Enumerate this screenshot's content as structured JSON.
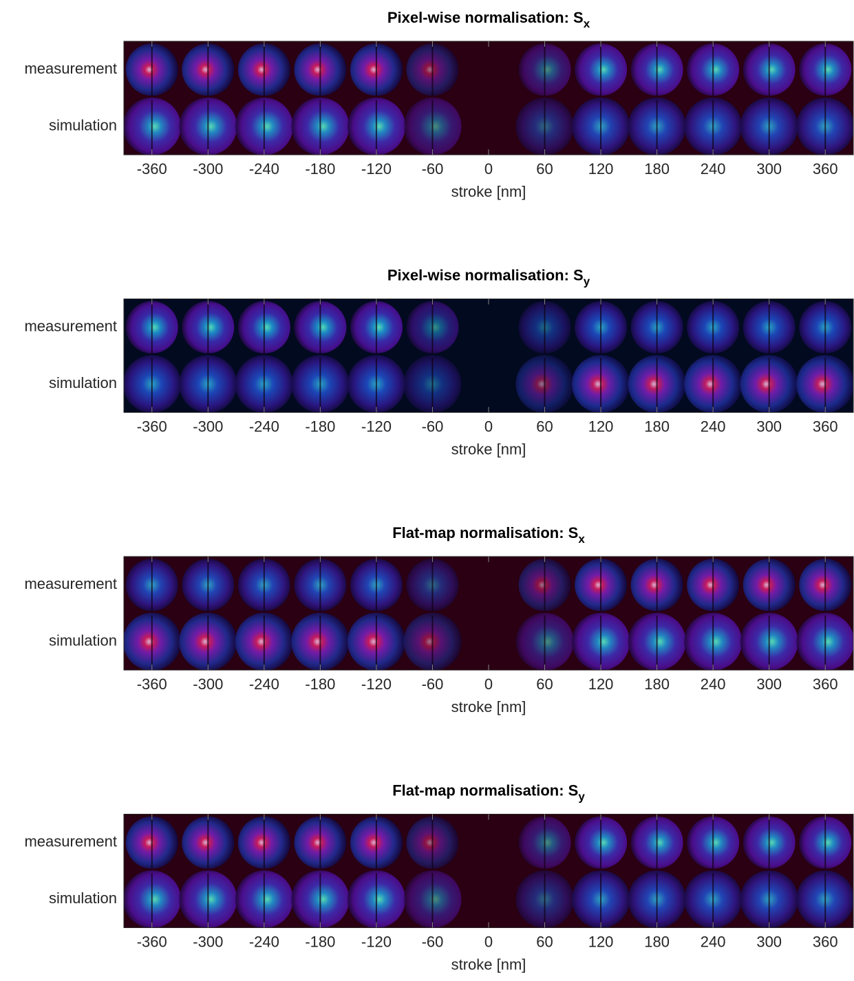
{
  "chart_data": [
    {
      "type": "heatmap",
      "title": "Pixel-wise normalisation: S",
      "title_subscript": "x",
      "categories": [
        "measurement",
        "simulation"
      ],
      "xlabel": "stroke [nm]",
      "xlim": [
        -390,
        390
      ],
      "xticks": [
        -360,
        -300,
        -240,
        -180,
        -120,
        -60,
        0,
        60,
        120,
        180,
        240,
        300,
        360
      ],
      "background": "#2a0012"
    },
    {
      "type": "heatmap",
      "title": "Pixel-wise normalisation: S",
      "title_subscript": "y",
      "categories": [
        "measurement",
        "simulation"
      ],
      "xlabel": "stroke [nm]",
      "xlim": [
        -390,
        390
      ],
      "xticks": [
        -360,
        -300,
        -240,
        -180,
        -120,
        -60,
        0,
        60,
        120,
        180,
        240,
        300,
        360
      ],
      "background": "#020a20"
    },
    {
      "type": "heatmap",
      "title": "Flat-map normalisation: S",
      "title_subscript": "x",
      "categories": [
        "measurement",
        "simulation"
      ],
      "xlabel": "stroke [nm]",
      "xlim": [
        -390,
        390
      ],
      "xticks": [
        -360,
        -300,
        -240,
        -180,
        -120,
        -60,
        0,
        60,
        120,
        180,
        240,
        300,
        360
      ],
      "background": "#2a0012"
    },
    {
      "type": "heatmap",
      "title": "Flat-map normalisation: S",
      "title_subscript": "y",
      "categories": [
        "measurement",
        "simulation"
      ],
      "xlabel": "stroke [nm]",
      "xlim": [
        -390,
        390
      ],
      "xticks": [
        -360,
        -300,
        -240,
        -180,
        -120,
        -60,
        0,
        60,
        120,
        180,
        240,
        300,
        360
      ],
      "background": "#2a0012"
    }
  ]
}
